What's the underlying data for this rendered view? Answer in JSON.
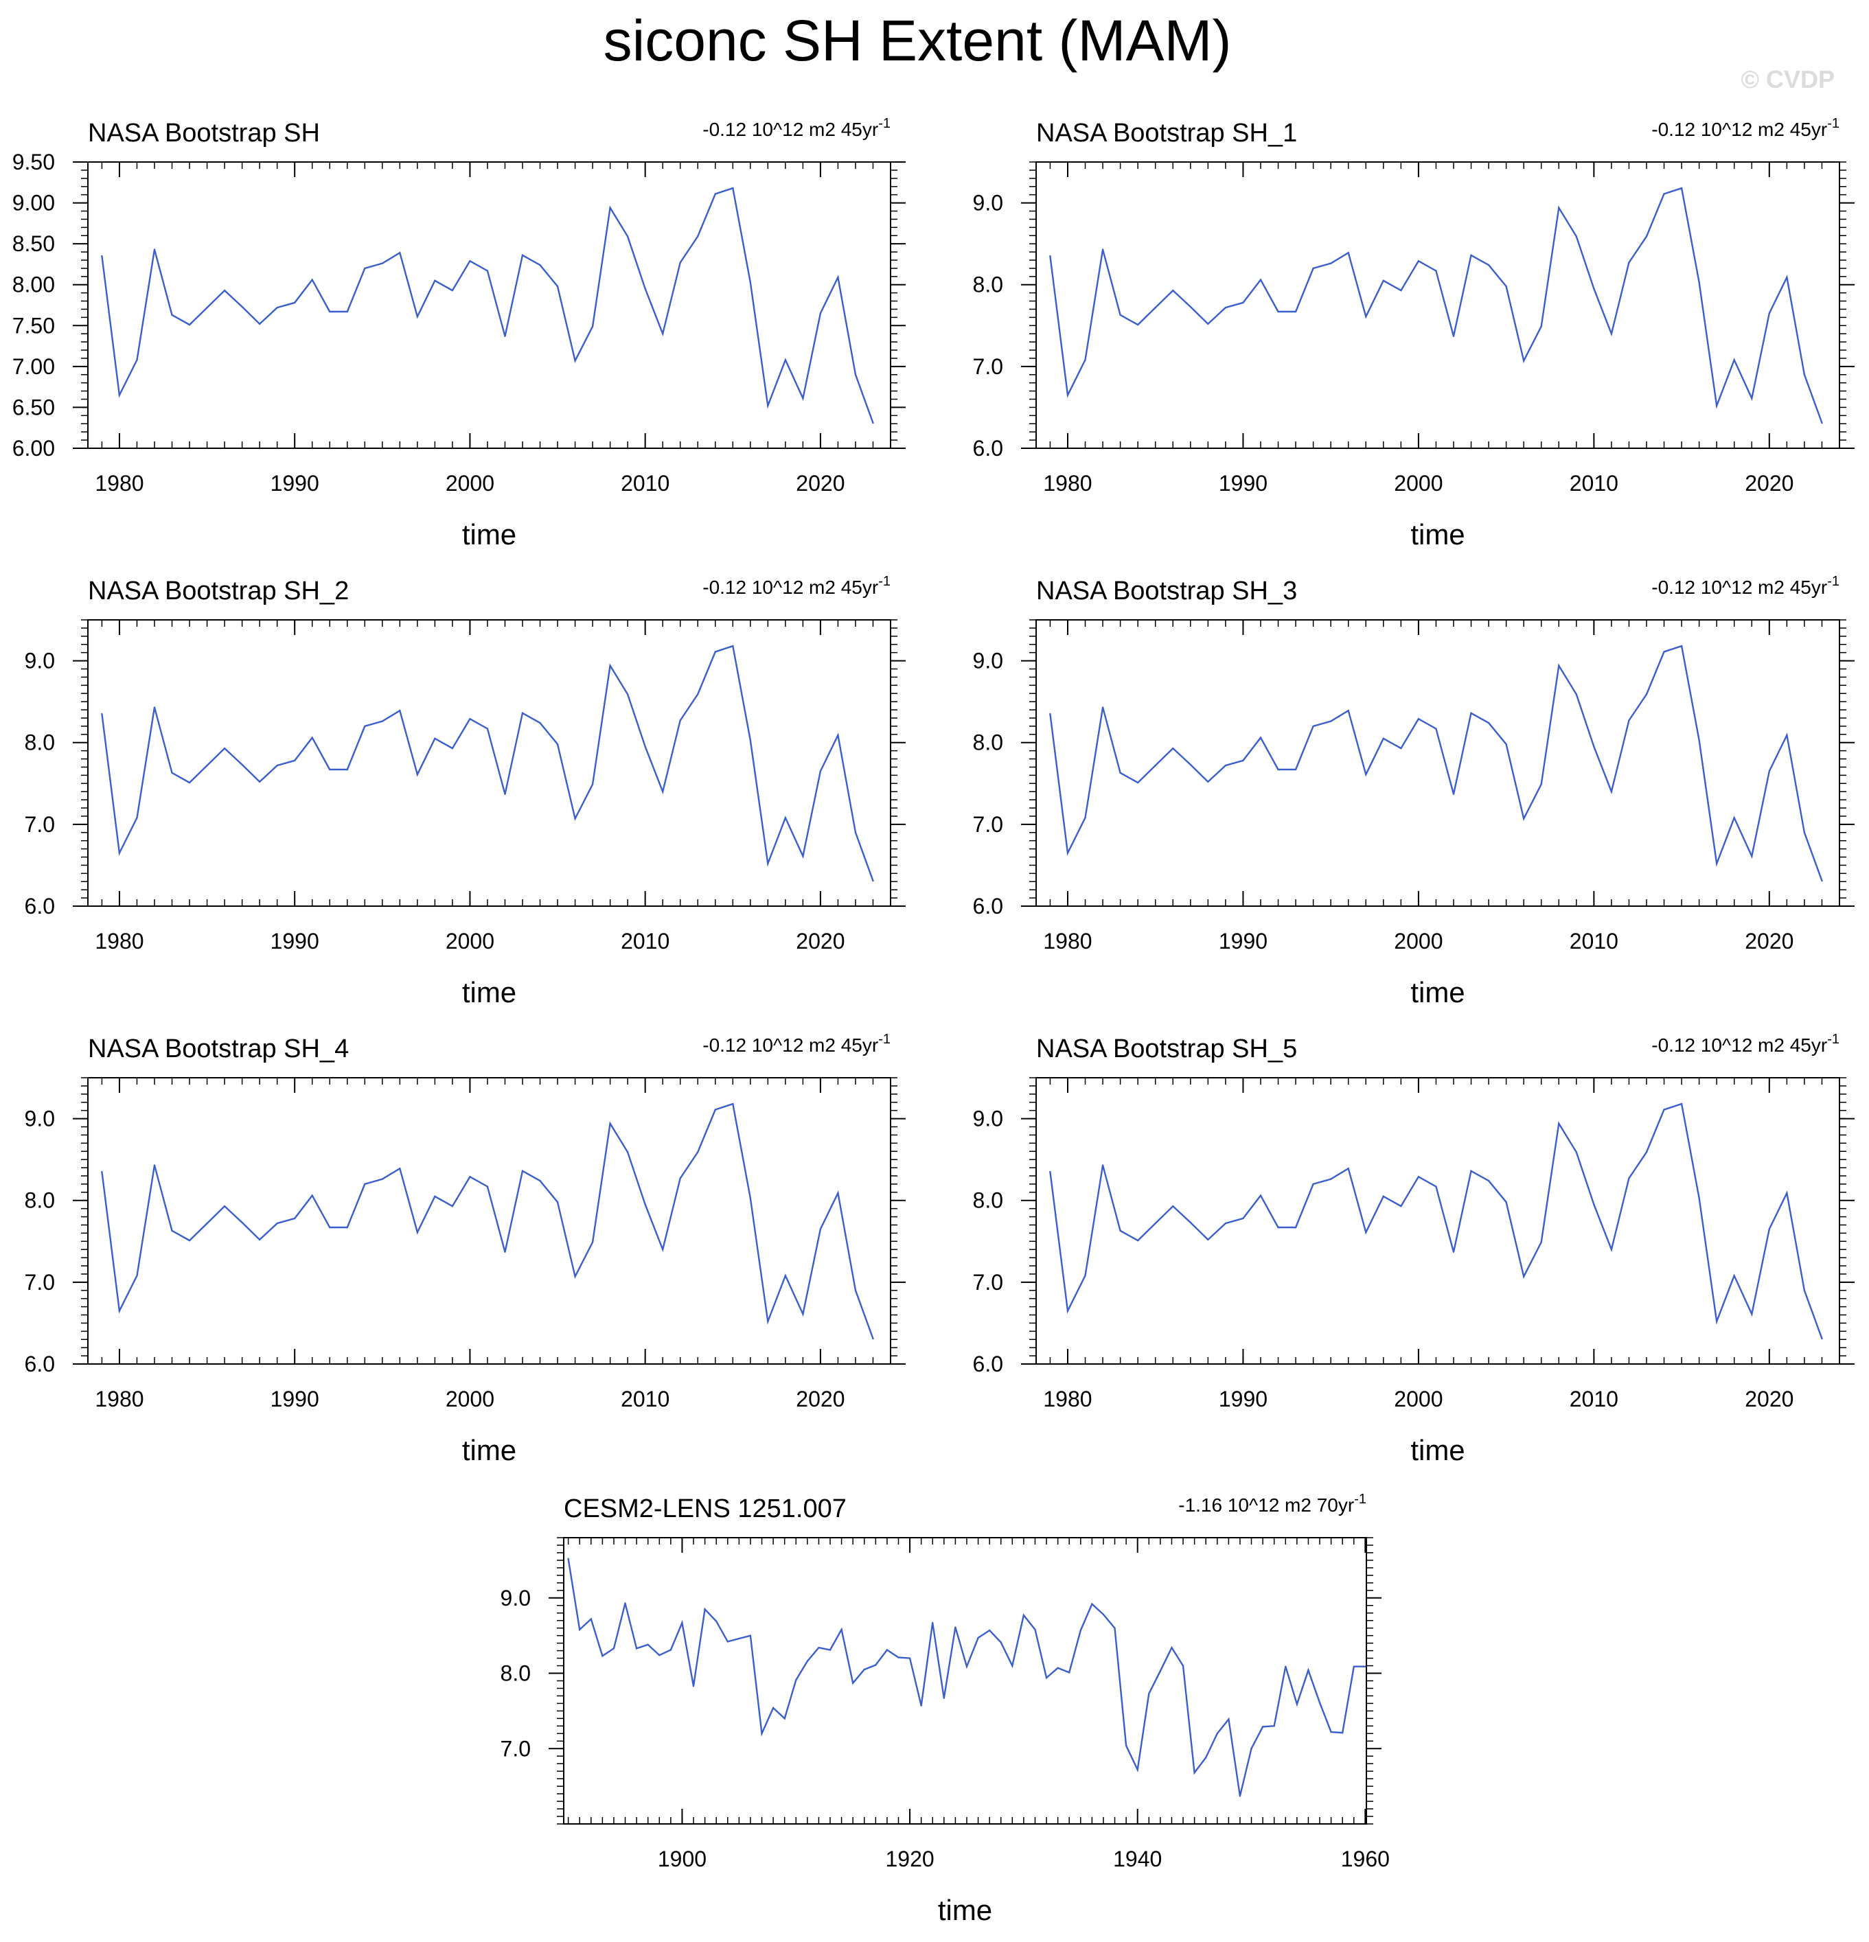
{
  "figure_title": "siconc SH Extent (MAM)",
  "watermark": "© CVDP",
  "line_color": "#3a5fcd",
  "chart_data": [
    {
      "type": "line",
      "title": "NASA Bootstrap SH",
      "trend": "-0.12 10^12 m2 45yr",
      "trend_exp": "-1",
      "xlabel": "time",
      "ylabel": "",
      "xlim": [
        1978.2,
        2024.0
      ],
      "ylim": [
        6.0,
        9.5
      ],
      "xticks": [
        1980,
        1990,
        2000,
        2010,
        2020
      ],
      "xtick_labels": [
        "1980",
        "1990",
        "2000",
        "2010",
        "2020"
      ],
      "yticks": [
        6.0,
        6.5,
        7.0,
        7.5,
        8.0,
        8.5,
        9.0,
        9.5
      ],
      "ytick_labels": [
        "6.00",
        "6.50",
        "7.00",
        "7.50",
        "8.00",
        "8.50",
        "9.00",
        "9.50"
      ],
      "series": [
        {
          "name": "NASA Bootstrap SH",
          "x": [
            1979,
            1980,
            1981,
            1982,
            1983,
            1984,
            1985,
            1986,
            1987,
            1988,
            1989,
            1990,
            1991,
            1992,
            1993,
            1994,
            1995,
            1996,
            1997,
            1998,
            1999,
            2000,
            2001,
            2002,
            2003,
            2004,
            2005,
            2006,
            2007,
            2008,
            2009,
            2010,
            2011,
            2012,
            2013,
            2014,
            2015,
            2016,
            2017,
            2018,
            2019,
            2020,
            2021,
            2022,
            2023
          ],
          "values": [
            8.35,
            6.65,
            7.08,
            8.43,
            7.63,
            7.51,
            7.72,
            7.93,
            7.73,
            7.52,
            7.72,
            7.78,
            8.06,
            7.67,
            7.67,
            8.2,
            8.26,
            8.39,
            7.61,
            8.05,
            7.93,
            8.29,
            8.17,
            7.37,
            8.36,
            8.24,
            7.98,
            7.07,
            7.49,
            8.94,
            8.59,
            7.95,
            7.4,
            8.27,
            8.59,
            9.11,
            9.18,
            8.03,
            6.52,
            7.08,
            6.61,
            7.65,
            8.09,
            6.9,
            6.31
          ]
        }
      ]
    },
    {
      "type": "line",
      "title": "NASA Bootstrap SH_1",
      "trend": "-0.12 10^12 m2 45yr",
      "trend_exp": "-1",
      "xlabel": "time",
      "ylabel": "",
      "xlim": [
        1978.2,
        2024.0
      ],
      "ylim": [
        6.0,
        9.5
      ],
      "xticks": [
        1980,
        1990,
        2000,
        2010,
        2020
      ],
      "xtick_labels": [
        "1980",
        "1990",
        "2000",
        "2010",
        "2020"
      ],
      "yticks": [
        6.0,
        7.0,
        8.0,
        9.0
      ],
      "ytick_labels": [
        "6.0",
        "7.0",
        "8.0",
        "9.0"
      ],
      "series": [
        {
          "name": "NASA Bootstrap SH_1",
          "x": [
            1979,
            1980,
            1981,
            1982,
            1983,
            1984,
            1985,
            1986,
            1987,
            1988,
            1989,
            1990,
            1991,
            1992,
            1993,
            1994,
            1995,
            1996,
            1997,
            1998,
            1999,
            2000,
            2001,
            2002,
            2003,
            2004,
            2005,
            2006,
            2007,
            2008,
            2009,
            2010,
            2011,
            2012,
            2013,
            2014,
            2015,
            2016,
            2017,
            2018,
            2019,
            2020,
            2021,
            2022,
            2023
          ],
          "values": [
            8.35,
            6.65,
            7.08,
            8.43,
            7.63,
            7.51,
            7.72,
            7.93,
            7.73,
            7.52,
            7.72,
            7.78,
            8.06,
            7.67,
            7.67,
            8.2,
            8.26,
            8.39,
            7.61,
            8.05,
            7.93,
            8.29,
            8.17,
            7.37,
            8.36,
            8.24,
            7.98,
            7.07,
            7.49,
            8.94,
            8.59,
            7.95,
            7.4,
            8.27,
            8.59,
            9.11,
            9.18,
            8.03,
            6.52,
            7.08,
            6.61,
            7.65,
            8.09,
            6.9,
            6.31
          ]
        }
      ]
    },
    {
      "type": "line",
      "title": "NASA Bootstrap SH_2",
      "trend": "-0.12 10^12 m2 45yr",
      "trend_exp": "-1",
      "xlabel": "time",
      "ylabel": "",
      "xlim": [
        1978.2,
        2024.0
      ],
      "ylim": [
        6.0,
        9.5
      ],
      "xticks": [
        1980,
        1990,
        2000,
        2010,
        2020
      ],
      "xtick_labels": [
        "1980",
        "1990",
        "2000",
        "2010",
        "2020"
      ],
      "yticks": [
        6.0,
        7.0,
        8.0,
        9.0
      ],
      "ytick_labels": [
        "6.0",
        "7.0",
        "8.0",
        "9.0"
      ],
      "series": [
        {
          "name": "NASA Bootstrap SH_2",
          "x": [
            1979,
            1980,
            1981,
            1982,
            1983,
            1984,
            1985,
            1986,
            1987,
            1988,
            1989,
            1990,
            1991,
            1992,
            1993,
            1994,
            1995,
            1996,
            1997,
            1998,
            1999,
            2000,
            2001,
            2002,
            2003,
            2004,
            2005,
            2006,
            2007,
            2008,
            2009,
            2010,
            2011,
            2012,
            2013,
            2014,
            2015,
            2016,
            2017,
            2018,
            2019,
            2020,
            2021,
            2022,
            2023
          ],
          "values": [
            8.35,
            6.65,
            7.08,
            8.43,
            7.63,
            7.51,
            7.72,
            7.93,
            7.73,
            7.52,
            7.72,
            7.78,
            8.06,
            7.67,
            7.67,
            8.2,
            8.26,
            8.39,
            7.61,
            8.05,
            7.93,
            8.29,
            8.17,
            7.37,
            8.36,
            8.24,
            7.98,
            7.07,
            7.49,
            8.94,
            8.59,
            7.95,
            7.4,
            8.27,
            8.59,
            9.11,
            9.18,
            8.03,
            6.52,
            7.08,
            6.61,
            7.65,
            8.09,
            6.9,
            6.31
          ]
        }
      ]
    },
    {
      "type": "line",
      "title": "NASA Bootstrap SH_3",
      "trend": "-0.12 10^12 m2 45yr",
      "trend_exp": "-1",
      "xlabel": "time",
      "ylabel": "",
      "xlim": [
        1978.2,
        2024.0
      ],
      "ylim": [
        6.0,
        9.5
      ],
      "xticks": [
        1980,
        1990,
        2000,
        2010,
        2020
      ],
      "xtick_labels": [
        "1980",
        "1990",
        "2000",
        "2010",
        "2020"
      ],
      "yticks": [
        6.0,
        7.0,
        8.0,
        9.0
      ],
      "ytick_labels": [
        "6.0",
        "7.0",
        "8.0",
        "9.0"
      ],
      "series": [
        {
          "name": "NASA Bootstrap SH_3",
          "x": [
            1979,
            1980,
            1981,
            1982,
            1983,
            1984,
            1985,
            1986,
            1987,
            1988,
            1989,
            1990,
            1991,
            1992,
            1993,
            1994,
            1995,
            1996,
            1997,
            1998,
            1999,
            2000,
            2001,
            2002,
            2003,
            2004,
            2005,
            2006,
            2007,
            2008,
            2009,
            2010,
            2011,
            2012,
            2013,
            2014,
            2015,
            2016,
            2017,
            2018,
            2019,
            2020,
            2021,
            2022,
            2023
          ],
          "values": [
            8.35,
            6.65,
            7.08,
            8.43,
            7.63,
            7.51,
            7.72,
            7.93,
            7.73,
            7.52,
            7.72,
            7.78,
            8.06,
            7.67,
            7.67,
            8.2,
            8.26,
            8.39,
            7.61,
            8.05,
            7.93,
            8.29,
            8.17,
            7.37,
            8.36,
            8.24,
            7.98,
            7.07,
            7.49,
            8.94,
            8.59,
            7.95,
            7.4,
            8.27,
            8.59,
            9.11,
            9.18,
            8.03,
            6.52,
            7.08,
            6.61,
            7.65,
            8.09,
            6.9,
            6.31
          ]
        }
      ]
    },
    {
      "type": "line",
      "title": "NASA Bootstrap SH_4",
      "trend": "-0.12 10^12 m2 45yr",
      "trend_exp": "-1",
      "xlabel": "time",
      "ylabel": "",
      "xlim": [
        1978.2,
        2024.0
      ],
      "ylim": [
        6.0,
        9.5
      ],
      "xticks": [
        1980,
        1990,
        2000,
        2010,
        2020
      ],
      "xtick_labels": [
        "1980",
        "1990",
        "2000",
        "2010",
        "2020"
      ],
      "yticks": [
        6.0,
        7.0,
        8.0,
        9.0
      ],
      "ytick_labels": [
        "6.0",
        "7.0",
        "8.0",
        "9.0"
      ],
      "series": [
        {
          "name": "NASA Bootstrap SH_4",
          "x": [
            1979,
            1980,
            1981,
            1982,
            1983,
            1984,
            1985,
            1986,
            1987,
            1988,
            1989,
            1990,
            1991,
            1992,
            1993,
            1994,
            1995,
            1996,
            1997,
            1998,
            1999,
            2000,
            2001,
            2002,
            2003,
            2004,
            2005,
            2006,
            2007,
            2008,
            2009,
            2010,
            2011,
            2012,
            2013,
            2014,
            2015,
            2016,
            2017,
            2018,
            2019,
            2020,
            2021,
            2022,
            2023
          ],
          "values": [
            8.35,
            6.65,
            7.08,
            8.43,
            7.63,
            7.51,
            7.72,
            7.93,
            7.73,
            7.52,
            7.72,
            7.78,
            8.06,
            7.67,
            7.67,
            8.2,
            8.26,
            8.39,
            7.61,
            8.05,
            7.93,
            8.29,
            8.17,
            7.37,
            8.36,
            8.24,
            7.98,
            7.07,
            7.49,
            8.94,
            8.59,
            7.95,
            7.4,
            8.27,
            8.59,
            9.11,
            9.18,
            8.03,
            6.52,
            7.08,
            6.61,
            7.65,
            8.09,
            6.9,
            6.31
          ]
        }
      ]
    },
    {
      "type": "line",
      "title": "NASA Bootstrap SH_5",
      "trend": "-0.12 10^12 m2 45yr",
      "trend_exp": "-1",
      "xlabel": "time",
      "ylabel": "",
      "xlim": [
        1978.2,
        2024.0
      ],
      "ylim": [
        6.0,
        9.5
      ],
      "xticks": [
        1980,
        1990,
        2000,
        2010,
        2020
      ],
      "xtick_labels": [
        "1980",
        "1990",
        "2000",
        "2010",
        "2020"
      ],
      "yticks": [
        6.0,
        7.0,
        8.0,
        9.0
      ],
      "ytick_labels": [
        "6.0",
        "7.0",
        "8.0",
        "9.0"
      ],
      "series": [
        {
          "name": "NASA Bootstrap SH_5",
          "x": [
            1979,
            1980,
            1981,
            1982,
            1983,
            1984,
            1985,
            1986,
            1987,
            1988,
            1989,
            1990,
            1991,
            1992,
            1993,
            1994,
            1995,
            1996,
            1997,
            1998,
            1999,
            2000,
            2001,
            2002,
            2003,
            2004,
            2005,
            2006,
            2007,
            2008,
            2009,
            2010,
            2011,
            2012,
            2013,
            2014,
            2015,
            2016,
            2017,
            2018,
            2019,
            2020,
            2021,
            2022,
            2023
          ],
          "values": [
            8.35,
            6.65,
            7.08,
            8.43,
            7.63,
            7.51,
            7.72,
            7.93,
            7.73,
            7.52,
            7.72,
            7.78,
            8.06,
            7.67,
            7.67,
            8.2,
            8.26,
            8.39,
            7.61,
            8.05,
            7.93,
            8.29,
            8.17,
            7.37,
            8.36,
            8.24,
            7.98,
            7.07,
            7.49,
            8.94,
            8.59,
            7.95,
            7.4,
            8.27,
            8.59,
            9.11,
            9.18,
            8.03,
            6.52,
            7.08,
            6.61,
            7.65,
            8.09,
            6.9,
            6.31
          ]
        }
      ]
    },
    {
      "type": "line",
      "title": "CESM2-LENS 1251.007",
      "trend": "-1.16 10^12 m2 70yr",
      "trend_exp": "-1",
      "xlabel": "time",
      "ylabel": "",
      "xlim": [
        1889.6,
        1960.1
      ],
      "ylim": [
        6.0,
        9.8
      ],
      "xticks": [
        1900,
        1920,
        1940,
        1960
      ],
      "xtick_labels": [
        "1900",
        "1920",
        "1940",
        "1960"
      ],
      "yticks": [
        7.0,
        8.0,
        9.0
      ],
      "ytick_labels": [
        "7.0",
        "8.0",
        "9.0"
      ],
      "series": [
        {
          "name": "CESM2-LENS 1251.007",
          "x": [
            1890,
            1891,
            1892,
            1893,
            1894,
            1895,
            1896,
            1897,
            1898,
            1899,
            1900,
            1901,
            1902,
            1903,
            1904,
            1905,
            1906,
            1907,
            1908,
            1909,
            1910,
            1911,
            1912,
            1913,
            1914,
            1915,
            1916,
            1917,
            1918,
            1919,
            1920,
            1921,
            1922,
            1923,
            1924,
            1925,
            1926,
            1927,
            1928,
            1929,
            1930,
            1931,
            1932,
            1933,
            1934,
            1935,
            1936,
            1937,
            1938,
            1939,
            1940,
            1941,
            1942,
            1943,
            1944,
            1945,
            1946,
            1947,
            1948,
            1949,
            1950,
            1951,
            1952,
            1953,
            1954,
            1955,
            1956,
            1957,
            1958,
            1959,
            1960
          ],
          "values": [
            9.52,
            8.58,
            8.72,
            8.23,
            8.33,
            8.93,
            8.33,
            8.38,
            8.24,
            8.31,
            8.67,
            7.83,
            8.85,
            8.69,
            8.42,
            8.46,
            8.5,
            7.2,
            7.54,
            7.4,
            7.91,
            8.16,
            8.34,
            8.31,
            8.58,
            7.87,
            8.05,
            8.11,
            8.31,
            8.21,
            8.2,
            7.57,
            8.67,
            7.67,
            8.61,
            8.09,
            8.47,
            8.57,
            8.41,
            8.1,
            8.77,
            8.58,
            7.94,
            8.07,
            8.01,
            8.57,
            8.92,
            8.78,
            8.6,
            7.04,
            6.72,
            7.73,
            8.03,
            8.34,
            8.1,
            6.68,
            6.88,
            7.2,
            7.39,
            6.37,
            7.0,
            7.29,
            7.3,
            8.09,
            7.59,
            8.04,
            7.61,
            7.22,
            7.21,
            8.09,
            8.09
          ]
        }
      ]
    }
  ]
}
